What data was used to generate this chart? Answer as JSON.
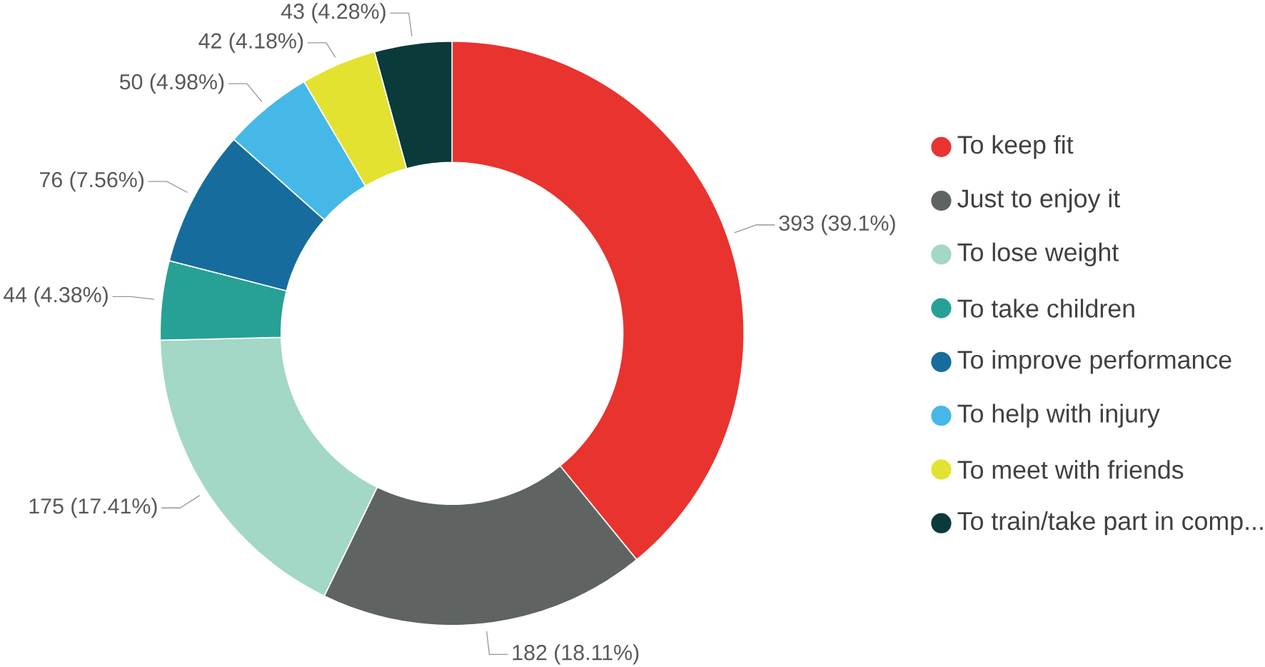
{
  "chart_data": {
    "type": "donut",
    "categories": [
      "To keep fit",
      "Just to enjoy it",
      "To lose weight",
      "To take children",
      "To improve performance",
      "To help with injury",
      "To meet with friends",
      "To train/take part in comp..."
    ],
    "values": [
      393,
      182,
      175,
      44,
      76,
      50,
      42,
      43
    ],
    "value_labels": [
      "393 (39.1%)",
      "182 (18.11%)",
      "175 (17.41%)",
      "44 (4.38%)",
      "76 (7.56%)",
      "50 (4.98%)",
      "42 (4.18%)",
      "43 (4.28%)"
    ],
    "colors": [
      "#e8332f",
      "#5f6462",
      "#a3d7c6",
      "#27a195",
      "#166c9c",
      "#46b8e8",
      "#e3e231",
      "#0b3a3a"
    ],
    "legend": "right"
  }
}
